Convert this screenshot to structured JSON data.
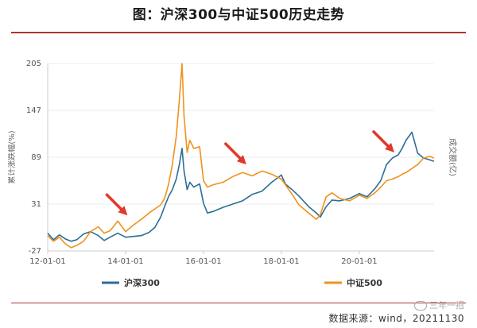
{
  "title": "图：沪深300与中证500历史走势",
  "source": "数据来源：wind，20211130",
  "watermark": "三年一招",
  "colors": {
    "hs300": "#2a6f97",
    "zz500": "#f0921e",
    "arrow": "#e2372a",
    "rule": "#b03030",
    "grid": "#eeeeee",
    "axis": "#cccccc"
  },
  "chart_data": {
    "type": "line",
    "ylabel_left": "累计涨跌幅(%)",
    "ylabel_right": "成交额(亿)",
    "yticks": [
      205,
      147,
      89,
      31,
      -27
    ],
    "ylim": [
      -27,
      205
    ],
    "xticks": [
      "12-01-01",
      "14-01-01",
      "16-01-01",
      "18-01-01",
      "20-01-01"
    ],
    "xlim": [
      2012.0,
      2021.92
    ],
    "legend": [
      {
        "name": "沪深300",
        "color": "#2a6f97"
      },
      {
        "name": "中证500",
        "color": "#f0921e"
      }
    ],
    "series": [
      {
        "name": "沪深300",
        "color": "#2a6f97",
        "x": [
          2012.0,
          2012.15,
          2012.3,
          2012.45,
          2012.6,
          2012.75,
          2012.92,
          2013.1,
          2013.3,
          2013.45,
          2013.6,
          2013.8,
          2014.0,
          2014.2,
          2014.4,
          2014.6,
          2014.75,
          2014.9,
          2015.0,
          2015.1,
          2015.2,
          2015.3,
          2015.38,
          2015.45,
          2015.5,
          2015.58,
          2015.65,
          2015.75,
          2015.9,
          2016.0,
          2016.1,
          2016.25,
          2016.5,
          2016.75,
          2017.0,
          2017.25,
          2017.5,
          2017.75,
          2018.0,
          2018.1,
          2018.25,
          2018.45,
          2018.7,
          2018.9,
          2019.0,
          2019.15,
          2019.3,
          2019.5,
          2019.75,
          2020.0,
          2020.2,
          2020.4,
          2020.55,
          2020.7,
          2020.85,
          2021.0,
          2021.1,
          2021.2,
          2021.35,
          2021.5,
          2021.65,
          2021.8,
          2021.92
        ],
        "values": [
          -5,
          -13,
          -7,
          -12,
          -15,
          -13,
          -6,
          -3,
          -8,
          -14,
          -10,
          -5,
          -10,
          -9,
          -8,
          -4,
          2,
          15,
          28,
          40,
          49,
          62,
          80,
          100,
          72,
          49,
          58,
          52,
          56,
          32,
          20,
          22,
          27,
          31,
          35,
          43,
          47,
          58,
          67,
          56,
          50,
          41,
          28,
          20,
          15,
          28,
          36,
          35,
          38,
          44,
          40,
          50,
          60,
          80,
          88,
          92,
          100,
          110,
          120,
          94,
          88,
          86,
          84
        ]
      },
      {
        "name": "中证500",
        "color": "#f0921e",
        "x": [
          2012.0,
          2012.15,
          2012.3,
          2012.45,
          2012.6,
          2012.75,
          2012.92,
          2013.1,
          2013.3,
          2013.45,
          2013.6,
          2013.8,
          2014.0,
          2014.2,
          2014.4,
          2014.6,
          2014.75,
          2014.9,
          2015.0,
          2015.1,
          2015.2,
          2015.3,
          2015.38,
          2015.45,
          2015.5,
          2015.58,
          2015.65,
          2015.75,
          2015.9,
          2016.0,
          2016.1,
          2016.25,
          2016.5,
          2016.75,
          2017.0,
          2017.25,
          2017.5,
          2017.75,
          2018.0,
          2018.1,
          2018.25,
          2018.45,
          2018.7,
          2018.9,
          2019.0,
          2019.15,
          2019.3,
          2019.5,
          2019.75,
          2020.0,
          2020.2,
          2020.4,
          2020.55,
          2020.7,
          2020.85,
          2021.0,
          2021.1,
          2021.2,
          2021.35,
          2021.5,
          2021.65,
          2021.8,
          2021.92
        ],
        "values": [
          -8,
          -15,
          -10,
          -18,
          -23,
          -20,
          -15,
          -3,
          3,
          -5,
          -2,
          10,
          -3,
          5,
          12,
          20,
          25,
          30,
          38,
          55,
          80,
          115,
          160,
          205,
          140,
          95,
          110,
          100,
          102,
          60,
          52,
          55,
          58,
          65,
          70,
          66,
          72,
          68,
          62,
          55,
          45,
          30,
          20,
          12,
          18,
          40,
          45,
          38,
          35,
          42,
          38,
          45,
          52,
          60,
          62,
          65,
          68,
          70,
          75,
          80,
          88,
          90,
          88
        ]
      }
    ]
  }
}
